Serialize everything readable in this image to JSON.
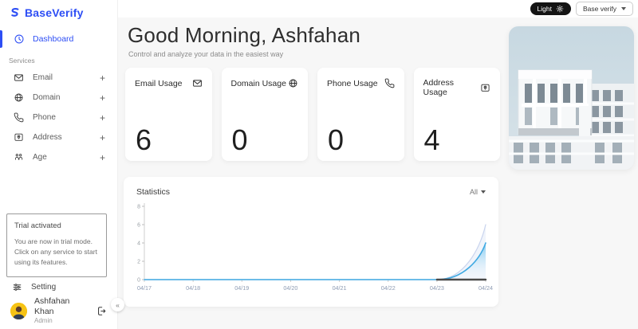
{
  "brand": {
    "name": "BaseVerify"
  },
  "sidebar": {
    "nav": {
      "dashboard": "Dashboard"
    },
    "services_label": "Services",
    "services": [
      {
        "label": "Email",
        "icon": "envelope-icon",
        "action": "+"
      },
      {
        "label": "Domain",
        "icon": "globe-icon",
        "action": "+"
      },
      {
        "label": "Phone",
        "icon": "phone-icon",
        "action": "+"
      },
      {
        "label": "Address",
        "icon": "map-pin-icon",
        "action": "+"
      },
      {
        "label": "Age",
        "icon": "people-icon",
        "action": "+"
      }
    ],
    "trial": {
      "title": "Trial activated",
      "body": "You are now in trial mode. Click on any service to start using its features."
    },
    "setting_label": "Setting",
    "user": {
      "name": "Ashfahan Khan",
      "role": "Admin"
    },
    "collapse_glyph": "«"
  },
  "topbar": {
    "theme_toggle": "Light",
    "workspace": "Base verify"
  },
  "header": {
    "greeting": "Good Morning, Ashfahan",
    "subtitle": "Control and analyze your data in the easiest way"
  },
  "usage_cards": [
    {
      "title": "Email Usage",
      "value": "6",
      "icon": "envelope-icon"
    },
    {
      "title": "Domain Usage",
      "value": "0",
      "icon": "globe-icon"
    },
    {
      "title": "Phone Usage",
      "value": "0",
      "icon": "phone-icon"
    },
    {
      "title": "Address Usage",
      "value": "4",
      "icon": "map-pin-icon"
    }
  ],
  "statistics": {
    "title": "Statistics",
    "filter_label": "All"
  },
  "chart_data": {
    "type": "area",
    "x": [
      "04/17",
      "04/18",
      "04/19",
      "04/20",
      "04/21",
      "04/22",
      "04/23",
      "04/24"
    ],
    "series": [
      {
        "name": "usage-upper",
        "values": [
          0,
          0,
          0,
          0,
          0,
          0,
          0,
          6
        ],
        "color": "#c9d4ee",
        "fill": "rgba(205,220,243,0.30)",
        "width": 1.2
      },
      {
        "name": "usage-lower",
        "values": [
          0,
          0,
          0,
          0,
          0,
          0,
          0,
          4
        ],
        "color": "#3fa9e2",
        "fill": "gradient-blue",
        "width": 1.6
      },
      {
        "name": "baseline-dark",
        "values": [
          null,
          null,
          null,
          null,
          null,
          null,
          0,
          0
        ],
        "color": "#4a4a4a",
        "fill": null,
        "width": 2.4
      }
    ],
    "ylim": [
      0,
      8
    ],
    "yticks": [
      0,
      2,
      4,
      6,
      8
    ],
    "grid": false,
    "legend": "none",
    "title": "Statistics",
    "xlabel": "",
    "ylabel": ""
  },
  "colors": {
    "accent_blue": "#2d4ef5",
    "chart_blue": "#3fa9e2",
    "chart_pale": "#c9d4ee",
    "dark_pill": "#141414",
    "background": "#f7f7f7"
  }
}
